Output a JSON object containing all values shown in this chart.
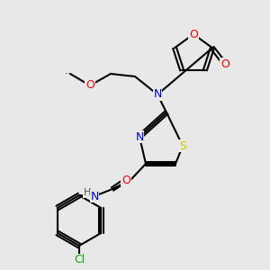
{
  "bg_color": "#e8e8e8",
  "bond_color": "#000000",
  "bond_width": 1.5,
  "atom_colors": {
    "N": "#0000cc",
    "O": "#ff0000",
    "S": "#cccc00",
    "Cl": "#00aa00",
    "H": "#555555"
  },
  "font_size": 9,
  "font_size_small": 8
}
